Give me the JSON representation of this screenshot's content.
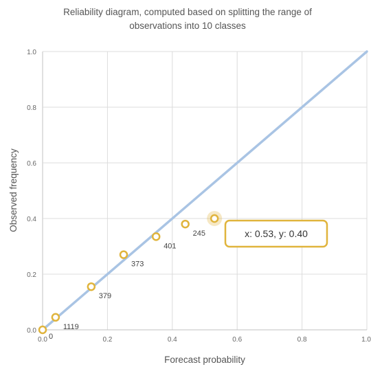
{
  "chart_data": {
    "type": "scatter",
    "title": "Reliability diagram, computed based on splitting the range of observations into 10 classes",
    "title_lines": [
      "Reliability diagram, computed based on splitting the range of",
      "observations into 10 classes"
    ],
    "xlabel": "Forecast probability",
    "ylabel": "Observed frequency",
    "xlim": [
      0,
      1
    ],
    "ylim": [
      0,
      1
    ],
    "xticks": [
      "0.0",
      "0.2",
      "0.4",
      "0.6",
      "0.8",
      "1.0"
    ],
    "yticks": [
      "0.0",
      "0.2",
      "0.4",
      "0.6",
      "0.8",
      "1.0"
    ],
    "grid": true,
    "legend": "none",
    "reference_line": {
      "from": [
        0,
        0
      ],
      "to": [
        1,
        1
      ],
      "color": "#a9c4e4"
    },
    "point_color": "#e0b43c",
    "points": [
      {
        "x": 0.0,
        "y": 0.0,
        "label": "0"
      },
      {
        "x": 0.04,
        "y": 0.045,
        "label": "1119"
      },
      {
        "x": 0.15,
        "y": 0.155,
        "label": "379"
      },
      {
        "x": 0.25,
        "y": 0.27,
        "label": "373"
      },
      {
        "x": 0.35,
        "y": 0.335,
        "label": "401"
      },
      {
        "x": 0.44,
        "y": 0.38,
        "label": "245"
      },
      {
        "x": 0.53,
        "y": 0.4,
        "label": ""
      }
    ],
    "tooltip": {
      "point_index": 6,
      "text": "x: 0.53, y: 0.40"
    }
  }
}
